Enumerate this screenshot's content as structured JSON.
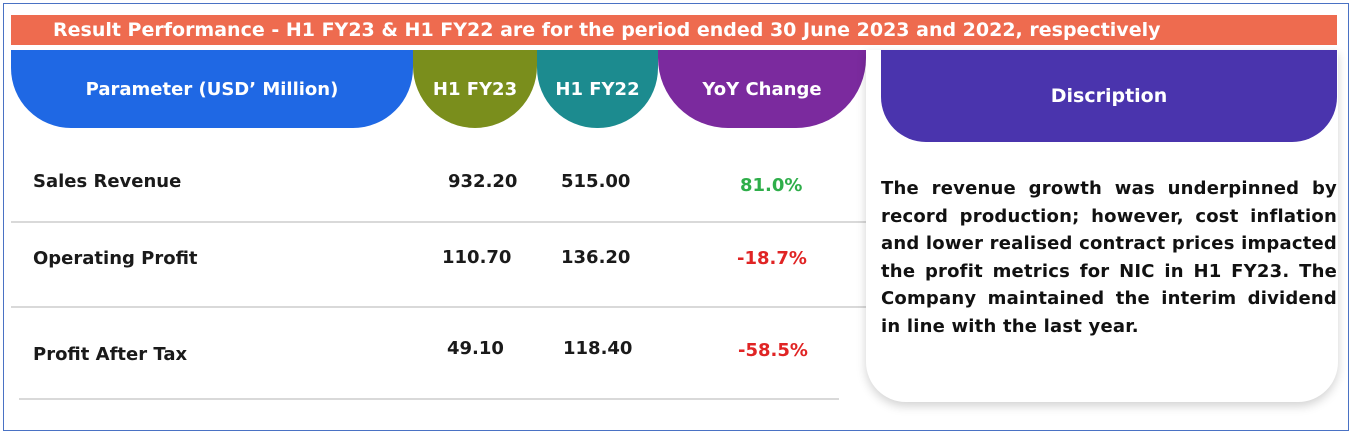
{
  "banner": "Result Performance - H1 FY23 & H1 FY22 are for the period ended 30 June 2023 and 2022, respectively",
  "headers": {
    "parameter": "Parameter (USD’ Million)",
    "h1fy23": "H1 FY23",
    "h1fy22": "H1 FY22",
    "yoy": "YoY Change",
    "description": "Discription"
  },
  "rows": [
    {
      "label": "Sales Revenue",
      "h1fy23": "932.20",
      "h1fy22": "515.00",
      "yoy": "81.0%"
    },
    {
      "label": "Operating Profit",
      "h1fy23": "110.70",
      "h1fy22": "136.20",
      "yoy": "-18.7%"
    },
    {
      "label": "Profit After Tax",
      "h1fy23": "49.10",
      "h1fy22": "118.40",
      "yoy": "-58.5%"
    }
  ],
  "description_text": "The revenue growth was underpinned by record production; however, cost inflation and lower realised contract prices impacted the profit metrics for NIC in H1 FY23. The Company maintained the interim dividend in line with the last year.",
  "colors": {
    "banner": "#ee6b4f",
    "param_header": "#1f68e4",
    "fy23_header": "#7a8e1c",
    "fy22_header": "#1c8b8f",
    "yoy_header": "#7b2a9e",
    "desc_header": "#4a34ad",
    "positive": "#2fae4a",
    "negative": "#e02424"
  }
}
